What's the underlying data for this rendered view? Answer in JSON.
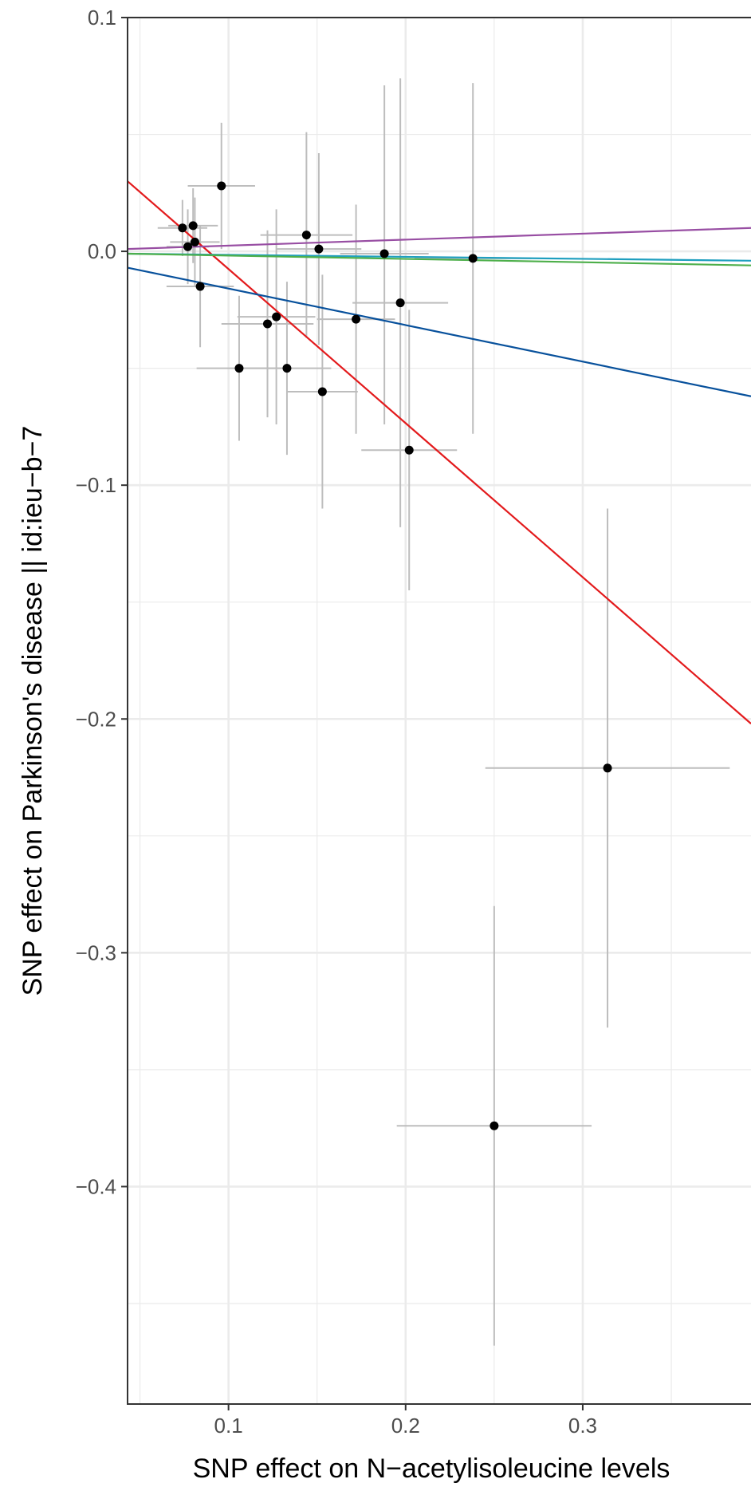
{
  "chart_data": {
    "type": "scatter",
    "title": "",
    "xlabel": "SNP effect on N−acetylisoleucine levels",
    "ylabel": "SNP effect on Parkinson's disease || id:ieu−b−7",
    "xlim": [
      0.043,
      0.395
    ],
    "ylim": [
      -0.493,
      0.1
    ],
    "x_ticks": [
      0.1,
      0.2,
      0.3
    ],
    "x_tick_labels": [
      "0.1",
      "0.2",
      "0.3"
    ],
    "y_ticks": [
      0.1,
      0.0,
      -0.1,
      -0.2,
      -0.3,
      -0.4
    ],
    "y_tick_labels": [
      "0.1",
      "0.0",
      "−0.1",
      "−0.2",
      "−0.3",
      "−0.4"
    ],
    "grid": true,
    "colors": {
      "point": "#000000",
      "errorbar": "#bdbdbd",
      "grid": "#ebebeb",
      "panel_border": "#333333"
    },
    "points": [
      {
        "x": 0.074,
        "y": 0.01,
        "x_lo": 0.06,
        "x_hi": 0.088,
        "y_lo": -0.002,
        "y_hi": 0.022
      },
      {
        "x": 0.077,
        "y": 0.002,
        "x_lo": 0.065,
        "x_hi": 0.089,
        "y_lo": -0.014,
        "y_hi": 0.018
      },
      {
        "x": 0.08,
        "y": 0.011,
        "x_lo": 0.066,
        "x_hi": 0.094,
        "y_lo": -0.005,
        "y_hi": 0.027
      },
      {
        "x": 0.081,
        "y": 0.004,
        "x_lo": 0.067,
        "x_hi": 0.095,
        "y_lo": -0.015,
        "y_hi": 0.023
      },
      {
        "x": 0.084,
        "y": -0.015,
        "x_lo": 0.065,
        "x_hi": 0.103,
        "y_lo": -0.041,
        "y_hi": 0.011
      },
      {
        "x": 0.096,
        "y": 0.028,
        "x_lo": 0.077,
        "x_hi": 0.115,
        "y_lo": 0.001,
        "y_hi": 0.055
      },
      {
        "x": 0.106,
        "y": -0.05,
        "x_lo": 0.082,
        "x_hi": 0.13,
        "y_lo": -0.081,
        "y_hi": -0.019
      },
      {
        "x": 0.122,
        "y": -0.031,
        "x_lo": 0.096,
        "x_hi": 0.148,
        "y_lo": -0.071,
        "y_hi": 0.009
      },
      {
        "x": 0.127,
        "y": -0.028,
        "x_lo": 0.105,
        "x_hi": 0.149,
        "y_lo": -0.074,
        "y_hi": 0.018
      },
      {
        "x": 0.133,
        "y": -0.05,
        "x_lo": 0.108,
        "x_hi": 0.158,
        "y_lo": -0.087,
        "y_hi": -0.013
      },
      {
        "x": 0.144,
        "y": 0.007,
        "x_lo": 0.118,
        "x_hi": 0.17,
        "y_lo": -0.037,
        "y_hi": 0.051
      },
      {
        "x": 0.151,
        "y": 0.001,
        "x_lo": 0.127,
        "x_hi": 0.175,
        "y_lo": -0.04,
        "y_hi": 0.042
      },
      {
        "x": 0.153,
        "y": -0.06,
        "x_lo": 0.133,
        "x_hi": 0.173,
        "y_lo": -0.11,
        "y_hi": -0.01
      },
      {
        "x": 0.172,
        "y": -0.029,
        "x_lo": 0.15,
        "x_hi": 0.194,
        "y_lo": -0.078,
        "y_hi": 0.02
      },
      {
        "x": 0.188,
        "y": -0.001,
        "x_lo": 0.163,
        "x_hi": 0.213,
        "y_lo": -0.074,
        "y_hi": 0.071
      },
      {
        "x": 0.197,
        "y": -0.022,
        "x_lo": 0.17,
        "x_hi": 0.224,
        "y_lo": -0.118,
        "y_hi": 0.074
      },
      {
        "x": 0.202,
        "y": -0.085,
        "x_lo": 0.175,
        "x_hi": 0.229,
        "y_lo": -0.145,
        "y_hi": -0.025
      },
      {
        "x": 0.238,
        "y": -0.003,
        "x_lo": 0.205,
        "x_hi": 0.271,
        "y_lo": -0.078,
        "y_hi": 0.072
      },
      {
        "x": 0.25,
        "y": -0.374,
        "x_lo": 0.195,
        "x_hi": 0.305,
        "y_lo": -0.468,
        "y_hi": -0.28
      },
      {
        "x": 0.314,
        "y": -0.221,
        "x_lo": 0.245,
        "x_hi": 0.383,
        "y_lo": -0.332,
        "y_hi": -0.11
      }
    ],
    "lines": [
      {
        "color": "#e31a1c",
        "x": [
          0.043,
          0.395
        ],
        "y": [
          0.03,
          -0.202
        ]
      },
      {
        "color": "#08519c",
        "x": [
          0.043,
          0.395
        ],
        "y": [
          -0.007,
          -0.062
        ]
      },
      {
        "color": "#984ea3",
        "x": [
          0.043,
          0.395
        ],
        "y": [
          0.001,
          0.01
        ]
      },
      {
        "color": "#1f9fbf",
        "x": [
          0.043,
          0.395
        ],
        "y": [
          -0.001,
          -0.004
        ]
      },
      {
        "color": "#4daf4a",
        "x": [
          0.043,
          0.395
        ],
        "y": [
          -0.001,
          -0.006
        ]
      }
    ]
  }
}
